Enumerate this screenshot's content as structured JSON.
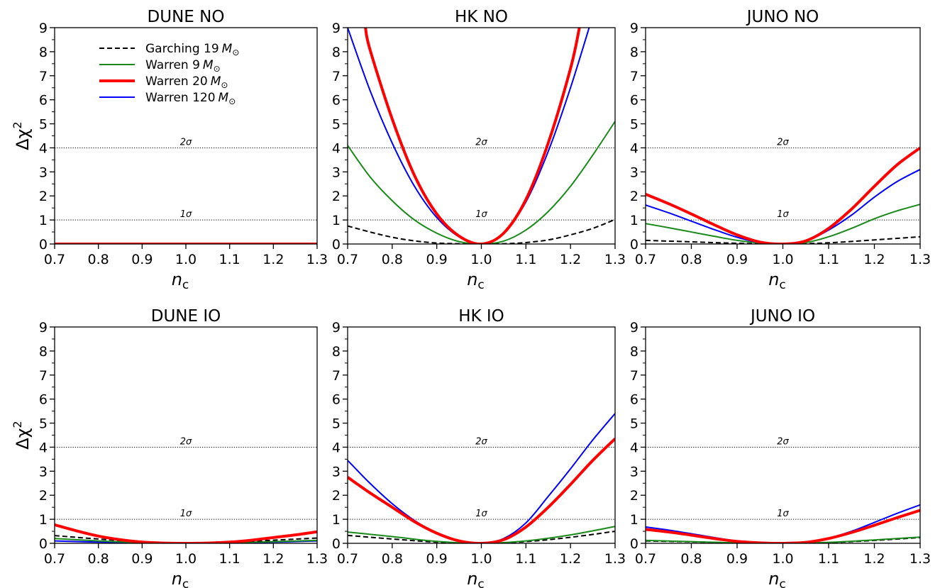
{
  "chart_data": [
    {
      "type": "line",
      "title": "DUNE NO",
      "xlabel": "n",
      "xlabel_sub": "c",
      "ylabel": "Δχ",
      "ylabel_sup": "2",
      "xlim": [
        0.7,
        1.3
      ],
      "ylim": [
        0,
        9
      ],
      "x_ticks": [
        "0.7",
        "0.8",
        "0.9",
        "1.0",
        "1.1",
        "1.2",
        "1.3"
      ],
      "y_ticks": [
        "0",
        "1",
        "2",
        "3",
        "4",
        "5",
        "6",
        "7",
        "8",
        "9"
      ],
      "reference_lines": [
        {
          "y": 1,
          "label": "1σ"
        },
        {
          "y": 4,
          "label": "2σ"
        }
      ],
      "legend": {
        "placement": "top-left",
        "items": [
          {
            "text": "Garching 19",
            "subscript": "⊙",
            "unit": "M",
            "color": "#000000",
            "dash": true,
            "width": 2
          },
          {
            "text": "Warren 9",
            "subscript": "⊙",
            "unit": "M",
            "color": "#1a8a1a",
            "dash": false,
            "width": 2
          },
          {
            "text": "Warren 20",
            "subscript": "⊙",
            "unit": "M",
            "color": "#ff0000",
            "dash": false,
            "width": 4
          },
          {
            "text": "Warren 120",
            "subscript": "⊙",
            "unit": "M",
            "color": "#0000ff",
            "dash": false,
            "width": 2
          }
        ]
      },
      "series": [
        {
          "x": [
            0.7,
            1.3
          ],
          "y": [
            0.0,
            0.0
          ],
          "color": "#1a8a1a",
          "width": 2
        },
        {
          "x": [
            0.7,
            1.3
          ],
          "y": [
            0.0,
            0.0
          ],
          "color": "#0000ff",
          "width": 2
        },
        {
          "x": [
            0.7,
            1.3
          ],
          "y": [
            0.0,
            0.0
          ],
          "color": "#000000",
          "width": 2,
          "dash": true
        },
        {
          "x": [
            0.7,
            1.3
          ],
          "y": [
            0.0,
            0.0
          ],
          "color": "#ff0000",
          "width": 4
        }
      ]
    },
    {
      "type": "line",
      "title": "HK NO",
      "xlabel": "n",
      "xlabel_sub": "c",
      "ylabel": "",
      "xlim": [
        0.7,
        1.3
      ],
      "ylim": [
        0,
        9
      ],
      "x_ticks": [
        "0.7",
        "0.8",
        "0.9",
        "1.0",
        "1.1",
        "1.2",
        "1.3"
      ],
      "y_ticks": [
        "0",
        "1",
        "2",
        "3",
        "4",
        "5",
        "6",
        "7",
        "8",
        "9"
      ],
      "reference_lines": [
        {
          "y": 1,
          "label": "1σ"
        },
        {
          "y": 4,
          "label": "2σ"
        }
      ],
      "series": [
        {
          "x": [
            0.7,
            0.75,
            0.8,
            0.85,
            0.9,
            0.95,
            1.0,
            1.05,
            1.1,
            1.15,
            1.2,
            1.25,
            1.3
          ],
          "y": [
            0.75,
            0.5,
            0.28,
            0.13,
            0.04,
            0.01,
            0.0,
            0.01,
            0.06,
            0.17,
            0.38,
            0.65,
            1.02
          ],
          "color": "#000000",
          "width": 2,
          "dash": true
        },
        {
          "x": [
            0.7,
            0.75,
            0.8,
            0.85,
            0.9,
            0.95,
            1.0,
            1.05,
            1.1,
            1.15,
            1.2,
            1.25,
            1.3
          ],
          "y": [
            4.1,
            2.8,
            1.8,
            1.0,
            0.45,
            0.1,
            0.0,
            0.12,
            0.58,
            1.35,
            2.4,
            3.7,
            5.1
          ],
          "color": "#1a8a1a",
          "width": 2
        },
        {
          "x": [
            0.7,
            0.75,
            0.8,
            0.85,
            0.9,
            0.95,
            1.0,
            1.05,
            1.1,
            1.15,
            1.2,
            1.25
          ],
          "y": [
            9.0,
            6.4,
            4.2,
            2.4,
            1.1,
            0.3,
            0.0,
            0.45,
            1.75,
            3.85,
            6.5,
            9.5
          ],
          "color": "#0000ff",
          "width": 2
        },
        {
          "x": [
            0.74,
            0.75,
            0.8,
            0.85,
            0.9,
            0.95,
            1.0,
            1.05,
            1.1,
            1.15,
            1.2,
            1.22
          ],
          "y": [
            9.0,
            8.1,
            5.2,
            2.85,
            1.25,
            0.33,
            0.0,
            0.45,
            1.85,
            4.2,
            7.3,
            9.0
          ],
          "color": "#ff0000",
          "width": 4
        }
      ]
    },
    {
      "type": "line",
      "title": "JUNO NO",
      "xlabel": "n",
      "xlabel_sub": "c",
      "ylabel": "",
      "xlim": [
        0.7,
        1.3
      ],
      "ylim": [
        0,
        9
      ],
      "x_ticks": [
        "0.7",
        "0.8",
        "0.9",
        "1.0",
        "1.1",
        "1.2",
        "1.3"
      ],
      "y_ticks": [
        "0",
        "1",
        "2",
        "3",
        "4",
        "5",
        "6",
        "7",
        "8",
        "9"
      ],
      "reference_lines": [
        {
          "y": 1,
          "label": "1σ"
        },
        {
          "y": 4,
          "label": "2σ"
        }
      ],
      "series": [
        {
          "x": [
            0.7,
            0.8,
            0.9,
            1.0,
            1.1,
            1.2,
            1.3
          ],
          "y": [
            0.15,
            0.09,
            0.03,
            0.0,
            0.05,
            0.17,
            0.3
          ],
          "color": "#000000",
          "width": 2,
          "dash": true
        },
        {
          "x": [
            0.7,
            0.75,
            0.8,
            0.85,
            0.9,
            0.95,
            1.0,
            1.05,
            1.1,
            1.15,
            1.2,
            1.25,
            1.3
          ],
          "y": [
            0.85,
            0.68,
            0.5,
            0.32,
            0.15,
            0.04,
            0.0,
            0.06,
            0.3,
            0.65,
            1.05,
            1.38,
            1.65
          ],
          "color": "#1a8a1a",
          "width": 2
        },
        {
          "x": [
            0.7,
            0.75,
            0.8,
            0.85,
            0.9,
            0.95,
            1.0,
            1.05,
            1.1,
            1.15,
            1.2,
            1.25,
            1.3
          ],
          "y": [
            1.62,
            1.3,
            0.95,
            0.6,
            0.28,
            0.06,
            0.0,
            0.12,
            0.58,
            1.2,
            1.95,
            2.6,
            3.1
          ],
          "color": "#0000ff",
          "width": 2
        },
        {
          "x": [
            0.7,
            0.75,
            0.8,
            0.85,
            0.9,
            0.95,
            1.0,
            1.05,
            1.1,
            1.15,
            1.2,
            1.25,
            1.3
          ],
          "y": [
            2.07,
            1.68,
            1.25,
            0.8,
            0.38,
            0.08,
            0.0,
            0.13,
            0.65,
            1.45,
            2.4,
            3.3,
            4.0
          ],
          "color": "#ff0000",
          "width": 4
        }
      ]
    },
    {
      "type": "line",
      "title": "DUNE IO",
      "xlabel": "n",
      "xlabel_sub": "c",
      "ylabel": "Δχ",
      "ylabel_sup": "2",
      "xlim": [
        0.7,
        1.3
      ],
      "ylim": [
        0,
        9
      ],
      "x_ticks": [
        "0.7",
        "0.8",
        "0.9",
        "1.0",
        "1.1",
        "1.2",
        "1.3"
      ],
      "y_ticks": [
        "0",
        "1",
        "2",
        "3",
        "4",
        "5",
        "6",
        "7",
        "8",
        "9"
      ],
      "reference_lines": [
        {
          "y": 1,
          "label": "1σ"
        },
        {
          "y": 4,
          "label": "2σ"
        }
      ],
      "series": [
        {
          "x": [
            0.7,
            0.8,
            0.9,
            1.0,
            1.1,
            1.2,
            1.3
          ],
          "y": [
            0.1,
            0.05,
            0.02,
            0.0,
            0.02,
            0.05,
            0.1
          ],
          "color": "#0000ff",
          "width": 2
        },
        {
          "x": [
            0.7,
            0.8,
            0.9,
            1.0,
            1.1,
            1.2,
            1.3
          ],
          "y": [
            0.2,
            0.1,
            0.03,
            0.0,
            0.03,
            0.07,
            0.12
          ],
          "color": "#1a8a1a",
          "width": 2
        },
        {
          "x": [
            0.7,
            0.8,
            0.9,
            1.0,
            1.1,
            1.2,
            1.3
          ],
          "y": [
            0.32,
            0.18,
            0.06,
            0.0,
            0.05,
            0.13,
            0.22
          ],
          "color": "#000000",
          "width": 2,
          "dash": true
        },
        {
          "x": [
            0.7,
            0.75,
            0.8,
            0.85,
            0.9,
            0.95,
            1.0,
            1.05,
            1.1,
            1.15,
            1.2,
            1.25,
            1.3
          ],
          "y": [
            0.77,
            0.52,
            0.3,
            0.15,
            0.05,
            0.01,
            0.0,
            0.01,
            0.05,
            0.13,
            0.24,
            0.35,
            0.48
          ],
          "color": "#ff0000",
          "width": 4
        }
      ]
    },
    {
      "type": "line",
      "title": "HK IO",
      "xlabel": "n",
      "xlabel_sub": "c",
      "ylabel": "",
      "xlim": [
        0.7,
        1.3
      ],
      "ylim": [
        0,
        9
      ],
      "x_ticks": [
        "0.7",
        "0.8",
        "0.9",
        "1.0",
        "1.1",
        "1.2",
        "1.3"
      ],
      "y_ticks": [
        "0",
        "1",
        "2",
        "3",
        "4",
        "5",
        "6",
        "7",
        "8",
        "9"
      ],
      "reference_lines": [
        {
          "y": 1,
          "label": "1σ"
        },
        {
          "y": 4,
          "label": "2σ"
        }
      ],
      "series": [
        {
          "x": [
            0.7,
            0.8,
            0.9,
            1.0,
            1.1,
            1.2,
            1.3
          ],
          "y": [
            0.33,
            0.18,
            0.05,
            0.0,
            0.07,
            0.25,
            0.5
          ],
          "color": "#000000",
          "width": 2,
          "dash": true
        },
        {
          "x": [
            0.7,
            0.8,
            0.9,
            1.0,
            1.1,
            1.2,
            1.3
          ],
          "y": [
            0.47,
            0.28,
            0.08,
            0.0,
            0.1,
            0.35,
            0.7
          ],
          "color": "#1a8a1a",
          "width": 2
        },
        {
          "x": [
            0.7,
            0.75,
            0.8,
            0.85,
            0.9,
            0.95,
            1.0,
            1.05,
            1.1,
            1.15,
            1.2,
            1.25,
            1.3
          ],
          "y": [
            3.45,
            2.5,
            1.65,
            0.95,
            0.42,
            0.1,
            0.0,
            0.2,
            0.85,
            1.95,
            3.1,
            4.3,
            5.4
          ],
          "color": "#0000ff",
          "width": 2
        },
        {
          "x": [
            0.7,
            0.75,
            0.8,
            0.85,
            0.9,
            0.95,
            1.0,
            1.05,
            1.1,
            1.15,
            1.2,
            1.25,
            1.3
          ],
          "y": [
            2.75,
            2.1,
            1.5,
            0.9,
            0.42,
            0.1,
            0.0,
            0.15,
            0.68,
            1.5,
            2.45,
            3.45,
            4.35
          ],
          "color": "#ff0000",
          "width": 4
        }
      ]
    },
    {
      "type": "line",
      "title": "JUNO IO",
      "xlabel": "n",
      "xlabel_sub": "c",
      "ylabel": "",
      "xlim": [
        0.7,
        1.3
      ],
      "ylim": [
        0,
        9
      ],
      "x_ticks": [
        "0.7",
        "0.8",
        "0.9",
        "1.0",
        "1.1",
        "1.2",
        "1.3"
      ],
      "y_ticks": [
        "0",
        "1",
        "2",
        "3",
        "4",
        "5",
        "6",
        "7",
        "8",
        "9"
      ],
      "reference_lines": [
        {
          "y": 1,
          "label": "1σ"
        },
        {
          "y": 4,
          "label": "2σ"
        }
      ],
      "series": [
        {
          "x": [
            0.7,
            0.8,
            0.9,
            1.0,
            1.1,
            1.2,
            1.3
          ],
          "y": [
            0.1,
            0.06,
            0.02,
            0.0,
            0.03,
            0.12,
            0.24
          ],
          "color": "#000000",
          "width": 2,
          "dash": true
        },
        {
          "x": [
            0.7,
            0.8,
            0.9,
            1.0,
            1.1,
            1.2,
            1.3
          ],
          "y": [
            0.12,
            0.07,
            0.02,
            0.0,
            0.04,
            0.14,
            0.26
          ],
          "color": "#1a8a1a",
          "width": 2
        },
        {
          "x": [
            0.7,
            0.75,
            0.8,
            0.85,
            0.9,
            0.95,
            1.0,
            1.05,
            1.1,
            1.15,
            1.2,
            1.25,
            1.3
          ],
          "y": [
            0.68,
            0.55,
            0.4,
            0.24,
            0.1,
            0.02,
            0.0,
            0.05,
            0.22,
            0.5,
            0.87,
            1.25,
            1.6
          ],
          "color": "#0000ff",
          "width": 2
        },
        {
          "x": [
            0.7,
            0.75,
            0.8,
            0.85,
            0.9,
            0.95,
            1.0,
            1.05,
            1.1,
            1.15,
            1.2,
            1.25,
            1.3
          ],
          "y": [
            0.58,
            0.47,
            0.34,
            0.2,
            0.08,
            0.02,
            0.0,
            0.04,
            0.2,
            0.45,
            0.75,
            1.07,
            1.37
          ],
          "color": "#ff0000",
          "width": 4
        }
      ]
    }
  ]
}
